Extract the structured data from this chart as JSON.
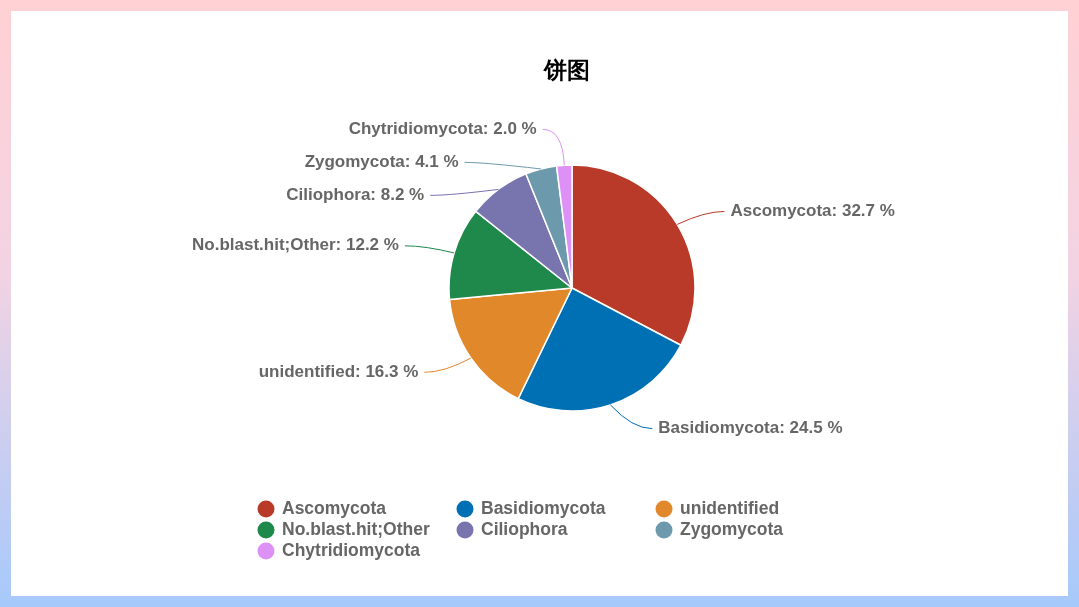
{
  "chart_data": {
    "type": "pie",
    "title": "饼图",
    "categories": [
      "Ascomycota",
      "Basidiomycota",
      "unidentified",
      "No.blast.hit;Other",
      "Ciliophora",
      "Zygomycota",
      "Chytridiomycota"
    ],
    "values": [
      32.7,
      24.5,
      16.3,
      12.2,
      8.2,
      4.1,
      2.0
    ],
    "colors": [
      "#b93a28",
      "#0070b5",
      "#e0882a",
      "#1f884b",
      "#7874ae",
      "#6c9aac",
      "#dd90f5"
    ],
    "value_labels": [
      "Ascomycota: 32.7 %",
      "Basidiomycota: 24.5 %",
      "unidentified: 16.3 %",
      "No.blast.hit;Other: 12.2 %",
      "Ciliophora: 8.2 %",
      "Zygomycota: 4.1 %",
      "Chytridiomycota: 2.0 %"
    ],
    "legend": "bottom"
  }
}
